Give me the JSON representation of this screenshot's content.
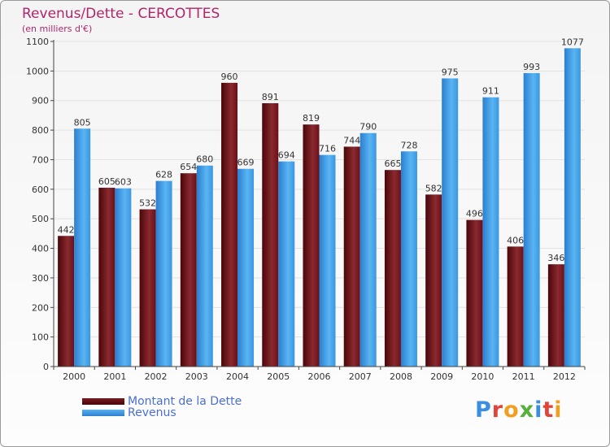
{
  "header": {
    "title": "Revenus/Dette - CERCOTTES",
    "subtitle": "(en milliers d'€)"
  },
  "legend": {
    "items": [
      {
        "label": "Montant de la Dette",
        "color": "#6a1018"
      },
      {
        "label": "Revenus",
        "color": "#3a97e0"
      }
    ]
  },
  "logo": {
    "text": "Proxiti",
    "colors": [
      "#3a8ee0",
      "#e0453a",
      "#f0a020",
      "#56b03a",
      "#3a8ee0",
      "#e0453a",
      "#f0a020"
    ]
  },
  "chart_data": {
    "type": "bar",
    "title": "Revenus/Dette - CERCOTTES",
    "subtitle": "(en milliers d'€)",
    "categories": [
      "2000",
      "2001",
      "2002",
      "2003",
      "2004",
      "2005",
      "2006",
      "2007",
      "2008",
      "2009",
      "2010",
      "2011",
      "2012"
    ],
    "series": [
      {
        "name": "Montant de la Dette",
        "color": "#6a1018",
        "values": [
          442,
          605,
          532,
          654,
          960,
          891,
          819,
          744,
          665,
          582,
          496,
          406,
          346
        ]
      },
      {
        "name": "Revenus",
        "color": "#3a97e0",
        "values": [
          805,
          603,
          628,
          680,
          669,
          694,
          716,
          790,
          728,
          975,
          911,
          993,
          1077
        ]
      }
    ],
    "yticks": [
      0,
      100,
      200,
      300,
      400,
      500,
      600,
      700,
      800,
      900,
      1000,
      1100
    ],
    "ylim": [
      0,
      1100
    ],
    "grid": true,
    "legend_position": "bottom-left"
  }
}
